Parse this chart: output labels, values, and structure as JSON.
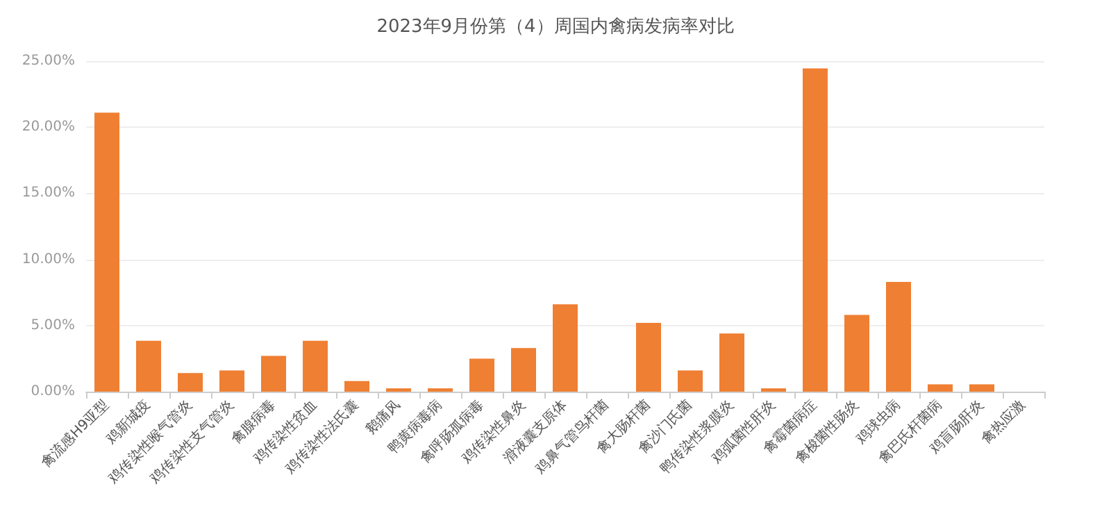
{
  "chart_data": {
    "type": "bar",
    "title": "2023年9月份第（4）周国内禽病发病率对比",
    "categories": [
      "禽流感H9亚型",
      "鸡新城疫",
      "鸡传染性喉气管炎",
      "鸡传染性支气管炎",
      "禽腺病毒",
      "鸡传染性贫血",
      "鸡传染性法氏囊",
      "鹅痛风",
      "鸭黄病毒病",
      "禽呼肠孤病毒",
      "鸡传染性鼻炎",
      "滑液囊支原体",
      "鸡鼻气管鸟杆菌",
      "禽大肠杆菌",
      "禽沙门氏菌",
      "鸭传染性浆膜炎",
      "鸡弧菌性肝炎",
      "禽霉菌病症",
      "禽梭菌性肠炎",
      "鸡球虫病",
      "禽巴氏杆菌病",
      "鸡盲肠肝炎",
      "禽热应激"
    ],
    "values": [
      21.1,
      3.85,
      1.4,
      1.6,
      2.7,
      3.85,
      0.8,
      0.25,
      0.25,
      2.5,
      3.3,
      6.6,
      0,
      5.2,
      1.6,
      4.4,
      0.25,
      24.45,
      5.8,
      8.3,
      0.55,
      0.55,
      0
    ],
    "color": "#ef7f32",
    "ylim": [
      0,
      25
    ],
    "yticks": [
      {
        "value": 0,
        "label": "0.00%"
      },
      {
        "value": 5,
        "label": "5.00%"
      },
      {
        "value": 10,
        "label": "10.00%"
      },
      {
        "value": 15,
        "label": "15.00%"
      },
      {
        "value": 20,
        "label": "20.00%"
      },
      {
        "value": 25,
        "label": "25.00%"
      }
    ],
    "grid": "y"
  }
}
